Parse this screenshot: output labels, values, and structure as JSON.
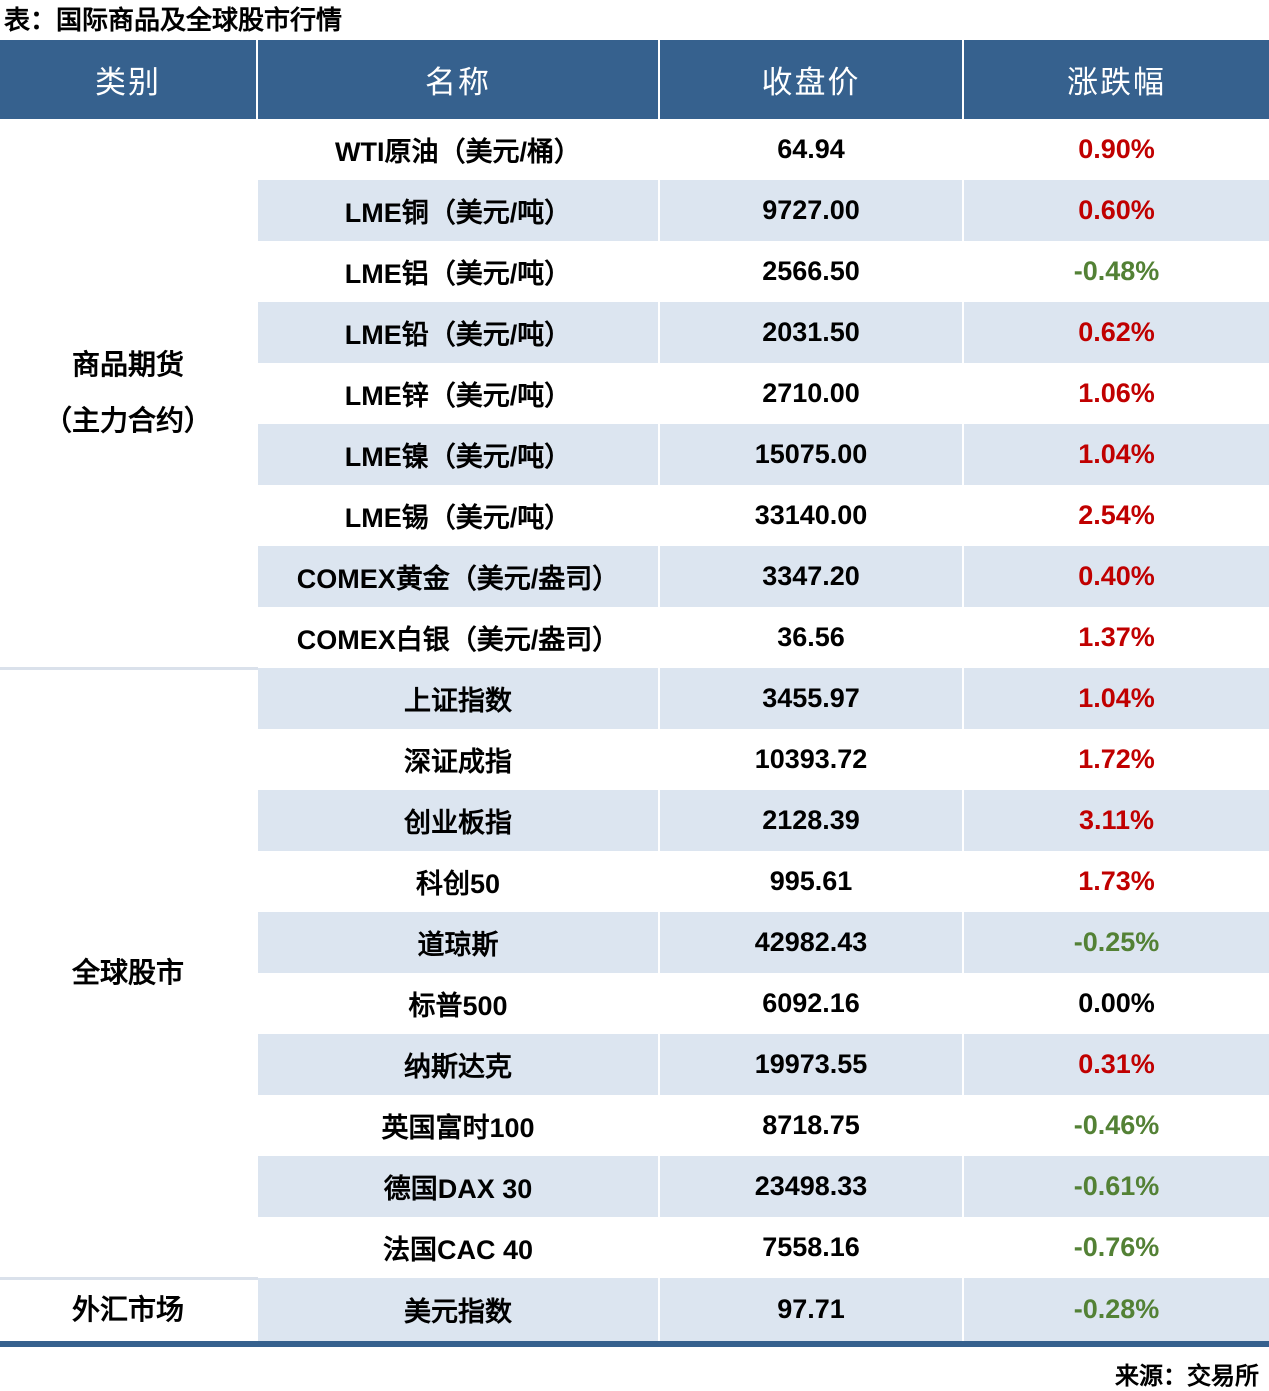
{
  "title": "表：国际商品及全球股市行情",
  "source": "来源：交易所",
  "colors": {
    "header_bg": "#36618E",
    "alt_row_bg": "#DCE5F0",
    "up_color": "#C00000",
    "down_color": "#538135",
    "flat_color": "#000000",
    "bottom_border": "#36618E"
  },
  "table": {
    "columns": [
      "类别",
      "名称",
      "收盘价",
      "涨跌幅"
    ],
    "sections": [
      {
        "category": "商品期货（主力合约）",
        "category_lines": [
          "商品期货",
          "（主力合约）"
        ],
        "rows": [
          {
            "name": "WTI原油（美元/桶）",
            "close": "64.94",
            "change": "0.90%",
            "direction": "up"
          },
          {
            "name": "LME铜（美元/吨）",
            "close": "9727.00",
            "change": "0.60%",
            "direction": "up"
          },
          {
            "name": "LME铝（美元/吨）",
            "close": "2566.50",
            "change": "-0.48%",
            "direction": "down"
          },
          {
            "name": "LME铅（美元/吨）",
            "close": "2031.50",
            "change": "0.62%",
            "direction": "up"
          },
          {
            "name": "LME锌（美元/吨）",
            "close": "2710.00",
            "change": "1.06%",
            "direction": "up"
          },
          {
            "name": "LME镍（美元/吨）",
            "close": "15075.00",
            "change": "1.04%",
            "direction": "up"
          },
          {
            "name": "LME锡（美元/吨）",
            "close": "33140.00",
            "change": "2.54%",
            "direction": "up"
          },
          {
            "name": "COMEX黄金（美元/盎司）",
            "close": "3347.20",
            "change": "0.40%",
            "direction": "up"
          },
          {
            "name": "COMEX白银（美元/盎司）",
            "close": "36.56",
            "change": "1.37%",
            "direction": "up"
          }
        ]
      },
      {
        "category": "全球股市",
        "category_lines": [
          "全球股市"
        ],
        "rows": [
          {
            "name": "上证指数",
            "close": "3455.97",
            "change": "1.04%",
            "direction": "up"
          },
          {
            "name": "深证成指",
            "close": "10393.72",
            "change": "1.72%",
            "direction": "up"
          },
          {
            "name": "创业板指",
            "close": "2128.39",
            "change": "3.11%",
            "direction": "up"
          },
          {
            "name": "科创50",
            "close": "995.61",
            "change": "1.73%",
            "direction": "up"
          },
          {
            "name": "道琼斯",
            "close": "42982.43",
            "change": "-0.25%",
            "direction": "down"
          },
          {
            "name": "标普500",
            "close": "6092.16",
            "change": "0.00%",
            "direction": "flat"
          },
          {
            "name": "纳斯达克",
            "close": "19973.55",
            "change": "0.31%",
            "direction": "up"
          },
          {
            "name": "英国富时100",
            "close": "8718.75",
            "change": "-0.46%",
            "direction": "down"
          },
          {
            "name": "德国DAX 30",
            "close": "23498.33",
            "change": "-0.61%",
            "direction": "down"
          },
          {
            "name": "法国CAC 40",
            "close": "7558.16",
            "change": "-0.76%",
            "direction": "down"
          }
        ]
      },
      {
        "category": "外汇市场",
        "category_lines": [
          "外汇市场"
        ],
        "rows": [
          {
            "name": "美元指数",
            "close": "97.71",
            "change": "-0.28%",
            "direction": "down"
          }
        ]
      }
    ]
  },
  "chart_data": {
    "type": "table",
    "title": "表：国际商品及全球股市行情",
    "columns": [
      "类别",
      "名称",
      "收盘价",
      "涨跌幅"
    ],
    "rows": [
      [
        "商品期货（主力合约）",
        "WTI原油（美元/桶）",
        64.94,
        "0.90%"
      ],
      [
        "商品期货（主力合约）",
        "LME铜（美元/吨）",
        9727.0,
        "0.60%"
      ],
      [
        "商品期货（主力合约）",
        "LME铝（美元/吨）",
        2566.5,
        "-0.48%"
      ],
      [
        "商品期货（主力合约）",
        "LME铅（美元/吨）",
        2031.5,
        "0.62%"
      ],
      [
        "商品期货（主力合约）",
        "LME锌（美元/吨）",
        2710.0,
        "1.06%"
      ],
      [
        "商品期货（主力合约）",
        "LME镍（美元/吨）",
        15075.0,
        "1.04%"
      ],
      [
        "商品期货（主力合约）",
        "LME锡（美元/吨）",
        33140.0,
        "2.54%"
      ],
      [
        "商品期货（主力合约）",
        "COMEX黄金（美元/盎司）",
        3347.2,
        "0.40%"
      ],
      [
        "商品期货（主力合约）",
        "COMEX白银（美元/盎司）",
        36.56,
        "1.37%"
      ],
      [
        "全球股市",
        "上证指数",
        3455.97,
        "1.04%"
      ],
      [
        "全球股市",
        "深证成指",
        10393.72,
        "1.72%"
      ],
      [
        "全球股市",
        "创业板指",
        2128.39,
        "3.11%"
      ],
      [
        "全球股市",
        "科创50",
        995.61,
        "1.73%"
      ],
      [
        "全球股市",
        "道琼斯",
        42982.43,
        "-0.25%"
      ],
      [
        "全球股市",
        "标普500",
        6092.16,
        "0.00%"
      ],
      [
        "全球股市",
        "纳斯达克",
        19973.55,
        "0.31%"
      ],
      [
        "全球股市",
        "英国富时100",
        8718.75,
        "-0.46%"
      ],
      [
        "全球股市",
        "德国DAX 30",
        23498.33,
        "-0.61%"
      ],
      [
        "全球股市",
        "法国CAC 40",
        7558.16,
        "-0.76%"
      ],
      [
        "外汇市场",
        "美元指数",
        97.71,
        "-0.28%"
      ]
    ],
    "source": "来源：交易所"
  }
}
